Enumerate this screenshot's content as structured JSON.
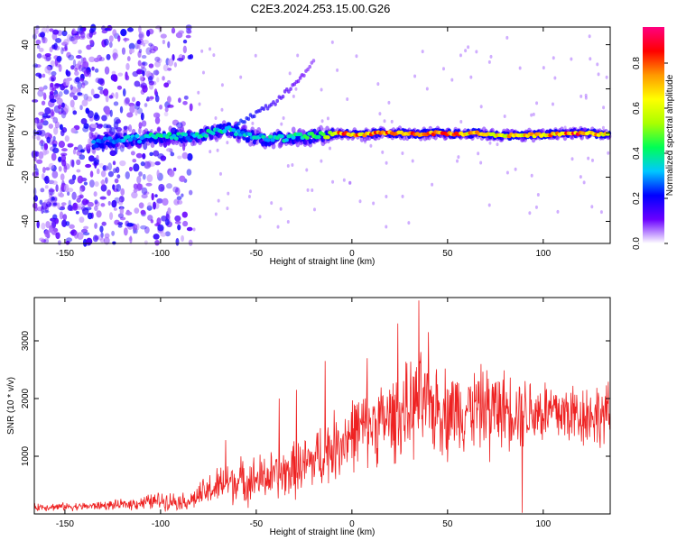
{
  "figure_title": "C2E3.2024.253.15.00.G26",
  "chart_data": [
    {
      "type": "heatmap",
      "panel": "spectrogram",
      "title": "C2E3.2024.253.15.00.G26",
      "xlabel": "Height of straight line (km)",
      "ylabel": "Frequency (Hz)",
      "xlim": [
        -166,
        135
      ],
      "ylim": [
        -50,
        48
      ],
      "xticks": [
        -150,
        -100,
        -50,
        0,
        50,
        100
      ],
      "yticks": [
        -40,
        -20,
        0,
        20,
        40
      ],
      "colorbar": {
        "label": "Normalized spectral amplitude",
        "range": [
          0,
          0.96
        ],
        "ticks": [
          0.0,
          0.2,
          0.4,
          0.6,
          0.8
        ],
        "tick_labels": [
          "0.0",
          "0.2",
          "0.4",
          "0.6",
          "0.8"
        ],
        "colormap": [
          "#ffffff",
          "#6a00ff",
          "#0000ff",
          "#00c8ff",
          "#00ff55",
          "#aaff00",
          "#ffff00",
          "#ff9900",
          "#ff0000",
          "#ff0080"
        ]
      },
      "noise_region": {
        "x": [
          -166,
          -84
        ],
        "y": [
          -50,
          48
        ],
        "amplitude": 0.15
      },
      "main_signal": [
        {
          "x": -135,
          "y": -4.5,
          "amp": 0.3
        },
        {
          "x": -125,
          "y": -3.5,
          "amp": 0.3
        },
        {
          "x": -115,
          "y": -3,
          "amp": 0.35
        },
        {
          "x": -105,
          "y": -2,
          "amp": 0.4
        },
        {
          "x": -95,
          "y": -1,
          "amp": 0.4
        },
        {
          "x": -85,
          "y": -2,
          "amp": 0.35
        },
        {
          "x": -75,
          "y": 0,
          "amp": 0.4
        },
        {
          "x": -65,
          "y": 2,
          "amp": 0.4
        },
        {
          "x": -55,
          "y": -1,
          "amp": 0.35
        },
        {
          "x": -45,
          "y": -3,
          "amp": 0.4
        },
        {
          "x": -35,
          "y": -2,
          "amp": 0.4
        },
        {
          "x": -25,
          "y": -2,
          "amp": 0.45
        },
        {
          "x": -15,
          "y": -1,
          "amp": 0.5
        },
        {
          "x": -5,
          "y": 0,
          "amp": 0.85
        },
        {
          "x": 5,
          "y": -1,
          "amp": 0.8
        },
        {
          "x": 15,
          "y": 0,
          "amp": 0.85
        },
        {
          "x": 25,
          "y": 0,
          "amp": 0.85
        },
        {
          "x": 35,
          "y": -0.5,
          "amp": 0.8
        },
        {
          "x": 45,
          "y": 0,
          "amp": 0.85
        },
        {
          "x": 55,
          "y": -0.5,
          "amp": 0.8
        },
        {
          "x": 65,
          "y": 0,
          "amp": 0.75
        },
        {
          "x": 75,
          "y": -1,
          "amp": 0.7
        },
        {
          "x": 85,
          "y": -1,
          "amp": 0.75
        },
        {
          "x": 95,
          "y": -1,
          "amp": 0.75
        },
        {
          "x": 105,
          "y": -0.5,
          "amp": 0.8
        },
        {
          "x": 115,
          "y": 0,
          "amp": 0.85
        },
        {
          "x": 125,
          "y": 0,
          "amp": 0.85
        },
        {
          "x": 135,
          "y": -1,
          "amp": 0.7
        }
      ],
      "secondary_branch": [
        {
          "x": -60,
          "y": 4,
          "amp": 0.25
        },
        {
          "x": -50,
          "y": 9,
          "amp": 0.2
        },
        {
          "x": -40,
          "y": 14,
          "amp": 0.15
        },
        {
          "x": -30,
          "y": 22,
          "amp": 0.12
        },
        {
          "x": -20,
          "y": 32,
          "amp": 0.08
        }
      ]
    },
    {
      "type": "line",
      "panel": "snr",
      "xlabel": "Height of straight line (km)",
      "ylabel": "SNR (10 * v/v)",
      "xlim": [
        -166,
        135
      ],
      "ylim": [
        0,
        3750
      ],
      "xticks": [
        -150,
        -100,
        -50,
        0,
        50,
        100
      ],
      "yticks": [
        1000,
        2000,
        3000
      ],
      "line_color": "#ee2222",
      "envelope": [
        {
          "x": -166,
          "mean": 120,
          "spread": 70
        },
        {
          "x": -140,
          "mean": 130,
          "spread": 70
        },
        {
          "x": -120,
          "mean": 160,
          "spread": 90
        },
        {
          "x": -100,
          "mean": 230,
          "spread": 160
        },
        {
          "x": -85,
          "mean": 220,
          "spread": 150
        },
        {
          "x": -75,
          "mean": 400,
          "spread": 300
        },
        {
          "x": -65,
          "mean": 550,
          "spread": 380
        },
        {
          "x": -50,
          "mean": 600,
          "spread": 420
        },
        {
          "x": -35,
          "mean": 700,
          "spread": 450
        },
        {
          "x": -25,
          "mean": 820,
          "spread": 520
        },
        {
          "x": -10,
          "mean": 1150,
          "spread": 600
        },
        {
          "x": 0,
          "mean": 1400,
          "spread": 650
        },
        {
          "x": 10,
          "mean": 1550,
          "spread": 700
        },
        {
          "x": 25,
          "mean": 1700,
          "spread": 750
        },
        {
          "x": 35,
          "mean": 1900,
          "spread": 900
        },
        {
          "x": 50,
          "mean": 1800,
          "spread": 750
        },
        {
          "x": 70,
          "mean": 1850,
          "spread": 700
        },
        {
          "x": 90,
          "mean": 1800,
          "spread": 650
        },
        {
          "x": 110,
          "mean": 1750,
          "spread": 600
        },
        {
          "x": 135,
          "mean": 1700,
          "spread": 550
        }
      ],
      "peaks": [
        {
          "x": 35,
          "y": 3700
        },
        {
          "x": 24,
          "y": 3300
        },
        {
          "x": 40,
          "y": 3150
        },
        {
          "x": -14,
          "y": 2650
        },
        {
          "x": 8,
          "y": 2700
        },
        {
          "x": -29,
          "y": 2150
        },
        {
          "x": -38,
          "y": 2000
        },
        {
          "x": -66,
          "y": 1280
        }
      ],
      "dips": [
        {
          "x": 89,
          "y": 20
        },
        {
          "x": 50,
          "y": 900
        },
        {
          "x": 72,
          "y": 900
        }
      ]
    }
  ]
}
